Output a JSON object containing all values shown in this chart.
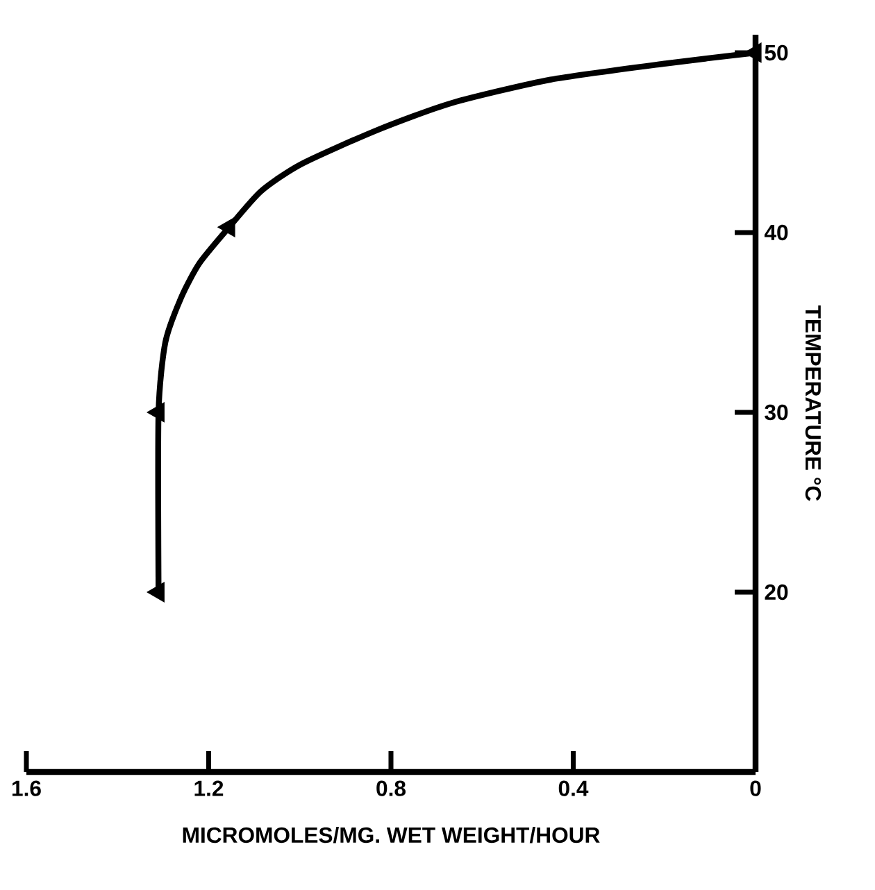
{
  "chart_data": {
    "type": "line",
    "xlabel": "MICROMOLES/MG. WET WEIGHT/HOUR",
    "ylabel": "TEMPERATURE °C",
    "xlim": [
      1.6,
      0
    ],
    "xticks": [
      1.6,
      1.2,
      0.8,
      0.4,
      0
    ],
    "ylim": [
      10,
      51
    ],
    "yticks": [
      20,
      30,
      40,
      50
    ],
    "series": [
      {
        "color": "#000000",
        "marker": "none",
        "x": [
          1.31,
          1.31,
          1.295,
          1.26,
          1.22,
          1.155,
          1.085,
          0.997,
          0.83,
          0.667,
          0.45,
          0.197,
          0
        ],
        "values": [
          20,
          30,
          33.9,
          36.4,
          38.3,
          40.3,
          42.3,
          43.8,
          45.7,
          47.2,
          48.5,
          49.4,
          50
        ]
      },
      {
        "type": "scatter",
        "color": "#000000",
        "marker": "triangle",
        "x": [
          1.31,
          1.31,
          1.155,
          0
        ],
        "values": [
          20,
          30,
          40.3,
          50
        ]
      }
    ]
  }
}
